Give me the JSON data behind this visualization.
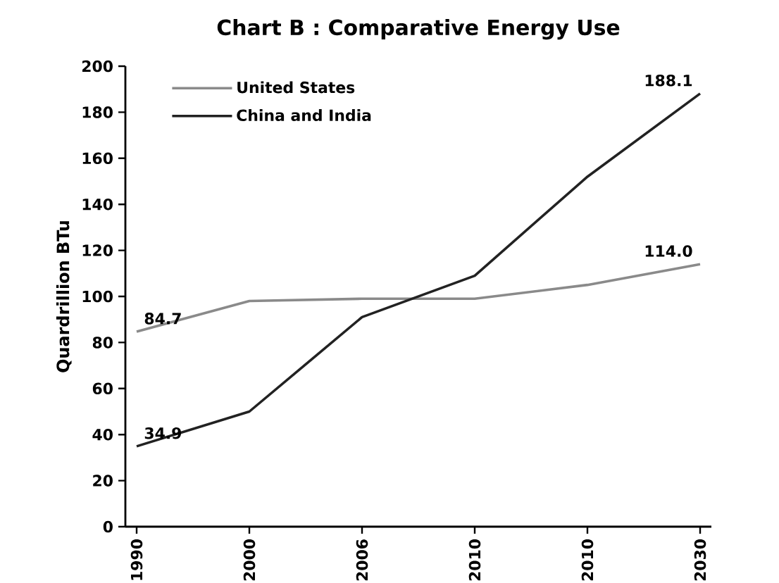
{
  "chart_data": {
    "type": "line",
    "title": "Chart B : Comparative Energy Use",
    "ylabel": "Quardrillion BTu",
    "categories": [
      "1990",
      "2000",
      "2006",
      "2010",
      "2010",
      "2030"
    ],
    "series": [
      {
        "name": "United States",
        "color": "#8a8a8a",
        "values": [
          84.7,
          98,
          99,
          99,
          105,
          114.0
        ],
        "value_labels": [
          "84.7",
          null,
          null,
          null,
          null,
          "114.0"
        ]
      },
      {
        "name": "China and India",
        "color": "#222222",
        "values": [
          34.9,
          50,
          91,
          109,
          152,
          188.1
        ],
        "value_labels": [
          "34.9",
          null,
          null,
          null,
          null,
          "188.1"
        ]
      }
    ],
    "ylim": [
      0,
      200
    ],
    "yticks": [
      0,
      20,
      40,
      60,
      80,
      100,
      120,
      140,
      160,
      180,
      200
    ],
    "legend": "top left",
    "grid": false,
    "marker": "none",
    "line_style": "solid"
  }
}
